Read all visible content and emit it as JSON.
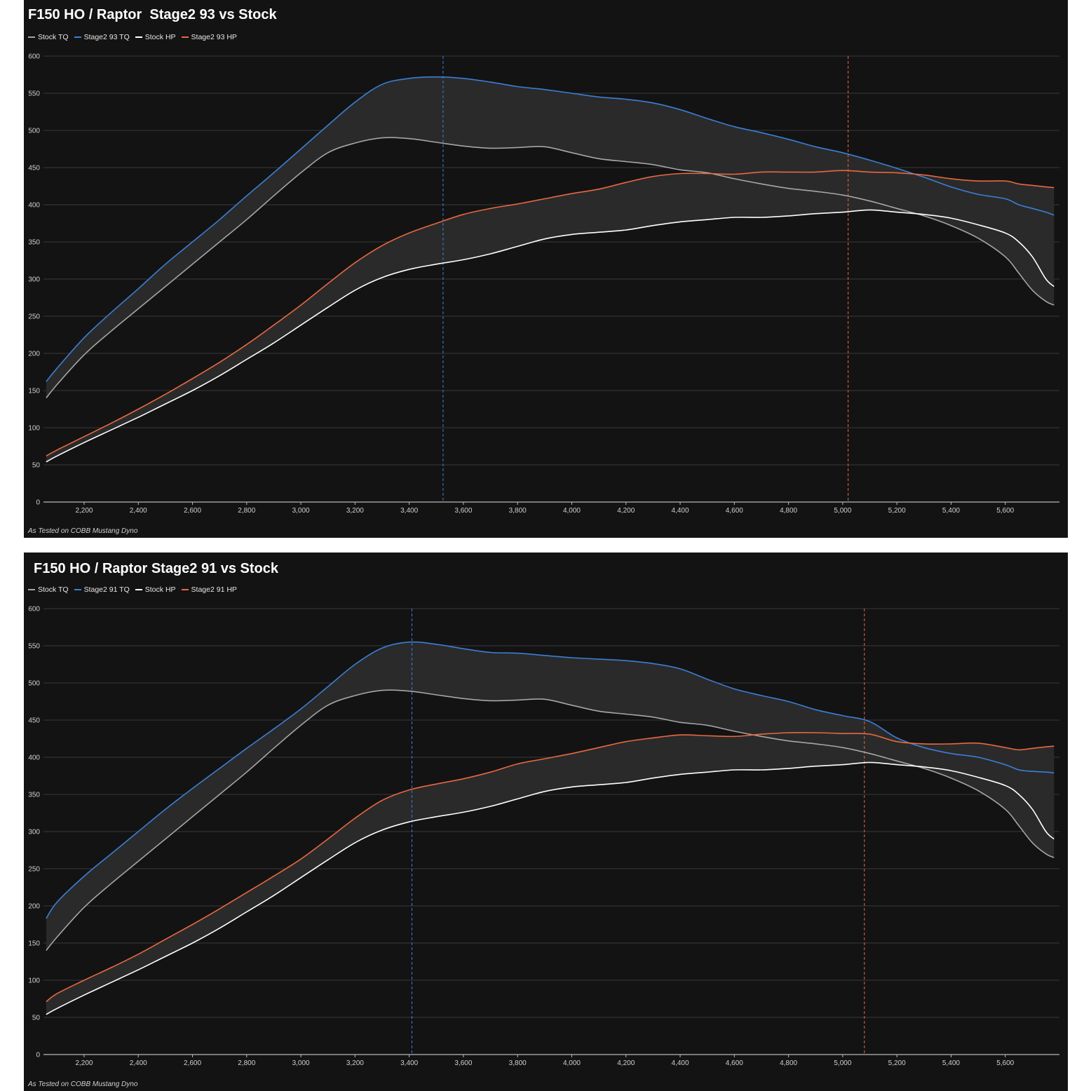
{
  "colors": {
    "background": "#131314",
    "grid": "#3a3a3c",
    "band": "#2a2a2b",
    "axis_text": "#cfcfcf"
  },
  "charts": [
    {
      "title": "F150 HO / Raptor  Stage2 93 vs Stock",
      "footnote": "As Tested on COBB Mustang Dyno"
    },
    {
      "title": "F150 HO / Raptor Stage2 91 vs Stock",
      "footnote": "As Tested on COBB Mustang Dyno"
    }
  ],
  "chart_data": [
    {
      "type": "line",
      "title": "F150 HO / Raptor  Stage2 93 vs Stock",
      "xlabel": "",
      "ylabel": "",
      "xlim": [
        2050,
        5800
      ],
      "ylim": [
        0,
        600
      ],
      "x_ticks": [
        "2,200",
        "2,400",
        "2,600",
        "2,800",
        "3,000",
        "3,200",
        "3,400",
        "3,600",
        "3,800",
        "4,000",
        "4,200",
        "4,400",
        "4,600",
        "4,800",
        "5,000",
        "5,200",
        "5,400",
        "5,600"
      ],
      "x_tick_values": [
        2200,
        2400,
        2600,
        2800,
        3000,
        3200,
        3400,
        3600,
        3800,
        4000,
        4200,
        4400,
        4600,
        4800,
        5000,
        5200,
        5400,
        5600
      ],
      "y_ticks": [
        0,
        50,
        100,
        150,
        200,
        250,
        300,
        350,
        400,
        450,
        500,
        550,
        600
      ],
      "grid": true,
      "legend_position": "top-left",
      "vlines": [
        {
          "x": 3525,
          "color": "#3b7fd4"
        },
        {
          "x": 5020,
          "color": "#e8683f"
        }
      ],
      "bands": [
        [
          "Stock TQ",
          "Stage2 93 TQ"
        ],
        [
          "Stock HP",
          "Stage2 93 HP"
        ]
      ],
      "series": [
        {
          "name": "Stock TQ",
          "color": "#a6a6a6",
          "x": [
            2060,
            2100,
            2200,
            2300,
            2400,
            2500,
            2600,
            2700,
            2800,
            2900,
            3000,
            3100,
            3200,
            3300,
            3400,
            3500,
            3600,
            3700,
            3800,
            3900,
            4000,
            4100,
            4200,
            4300,
            4400,
            4500,
            4600,
            4700,
            4800,
            4900,
            5000,
            5100,
            5200,
            5300,
            5400,
            5500,
            5600,
            5650,
            5700,
            5750,
            5780
          ],
          "y": [
            140,
            158,
            198,
            230,
            260,
            290,
            320,
            350,
            380,
            412,
            443,
            470,
            483,
            490,
            489,
            484,
            479,
            476,
            477,
            478,
            470,
            462,
            458,
            454,
            447,
            443,
            435,
            428,
            422,
            418,
            413,
            405,
            395,
            385,
            372,
            355,
            330,
            308,
            285,
            270,
            265
          ]
        },
        {
          "name": "Stage2 93 TQ",
          "color": "#3b7fd4",
          "x": [
            2060,
            2100,
            2200,
            2300,
            2400,
            2500,
            2600,
            2700,
            2800,
            2900,
            3000,
            3100,
            3200,
            3300,
            3400,
            3500,
            3600,
            3700,
            3800,
            3900,
            4000,
            4100,
            4200,
            4300,
            4400,
            4500,
            4600,
            4700,
            4800,
            4900,
            5000,
            5100,
            5200,
            5300,
            5400,
            5500,
            5600,
            5650,
            5700,
            5750,
            5780
          ],
          "y": [
            162,
            180,
            221,
            255,
            287,
            320,
            350,
            380,
            412,
            443,
            475,
            507,
            538,
            562,
            570,
            572,
            570,
            565,
            559,
            555,
            550,
            545,
            542,
            537,
            528,
            516,
            505,
            497,
            488,
            478,
            470,
            460,
            449,
            437,
            424,
            414,
            408,
            400,
            395,
            390,
            386
          ]
        },
        {
          "name": "Stock HP",
          "color": "#ffffff",
          "x": [
            2060,
            2100,
            2200,
            2300,
            2400,
            2500,
            2600,
            2700,
            2800,
            2900,
            3000,
            3100,
            3200,
            3300,
            3400,
            3500,
            3600,
            3700,
            3800,
            3900,
            4000,
            4100,
            4200,
            4300,
            4400,
            4500,
            4600,
            4700,
            4800,
            4900,
            5000,
            5100,
            5200,
            5300,
            5400,
            5500,
            5600,
            5650,
            5700,
            5750,
            5780
          ],
          "y": [
            54,
            62,
            80,
            97,
            114,
            132,
            150,
            170,
            192,
            214,
            238,
            262,
            285,
            302,
            313,
            320,
            326,
            334,
            344,
            354,
            360,
            363,
            366,
            372,
            377,
            380,
            383,
            383,
            385,
            388,
            390,
            393,
            390,
            387,
            382,
            373,
            362,
            350,
            330,
            300,
            290
          ]
        },
        {
          "name": "Stage2 93 HP",
          "color": "#e8683f",
          "x": [
            2060,
            2100,
            2200,
            2300,
            2400,
            2500,
            2600,
            2700,
            2800,
            2900,
            3000,
            3100,
            3200,
            3300,
            3400,
            3500,
            3600,
            3700,
            3800,
            3900,
            4000,
            4100,
            4200,
            4300,
            4400,
            4500,
            4600,
            4700,
            4800,
            4900,
            5000,
            5100,
            5200,
            5300,
            5400,
            5500,
            5600,
            5650,
            5700,
            5750,
            5780
          ],
          "y": [
            62,
            70,
            88,
            106,
            125,
            145,
            166,
            188,
            212,
            238,
            265,
            294,
            322,
            345,
            362,
            375,
            387,
            395,
            401,
            408,
            415,
            421,
            430,
            438,
            442,
            442,
            441,
            444,
            444,
            444,
            446,
            444,
            443,
            440,
            435,
            432,
            432,
            428,
            426,
            424,
            423
          ]
        }
      ]
    },
    {
      "type": "line",
      "title": "F150 HO / Raptor Stage2 91 vs Stock",
      "xlabel": "",
      "ylabel": "",
      "xlim": [
        2050,
        5800
      ],
      "ylim": [
        0,
        600
      ],
      "x_ticks": [
        "2,200",
        "2,400",
        "2,600",
        "2,800",
        "3,000",
        "3,200",
        "3,400",
        "3,600",
        "3,800",
        "4,000",
        "4,200",
        "4,400",
        "4,600",
        "4,800",
        "5,000",
        "5,200",
        "5,400",
        "5,600"
      ],
      "x_tick_values": [
        2200,
        2400,
        2600,
        2800,
        3000,
        3200,
        3400,
        3600,
        3800,
        4000,
        4200,
        4400,
        4600,
        4800,
        5000,
        5200,
        5400,
        5600
      ],
      "y_ticks": [
        0,
        50,
        100,
        150,
        200,
        250,
        300,
        350,
        400,
        450,
        500,
        550,
        600
      ],
      "grid": true,
      "legend_position": "top-left",
      "vlines": [
        {
          "x": 3410,
          "color": "#3b7fd4"
        },
        {
          "x": 5080,
          "color": "#e8683f"
        }
      ],
      "bands": [
        [
          "Stock TQ",
          "Stage2 91 TQ"
        ],
        [
          "Stock HP",
          "Stage2 91 HP"
        ]
      ],
      "series": [
        {
          "name": "Stock TQ",
          "color": "#a6a6a6",
          "x": [
            2060,
            2100,
            2200,
            2300,
            2400,
            2500,
            2600,
            2700,
            2800,
            2900,
            3000,
            3100,
            3200,
            3300,
            3400,
            3500,
            3600,
            3700,
            3800,
            3900,
            4000,
            4100,
            4200,
            4300,
            4400,
            4500,
            4600,
            4700,
            4800,
            4900,
            5000,
            5100,
            5200,
            5300,
            5400,
            5500,
            5600,
            5650,
            5700,
            5750,
            5780
          ],
          "y": [
            140,
            158,
            198,
            230,
            260,
            290,
            320,
            350,
            380,
            412,
            443,
            470,
            483,
            490,
            489,
            484,
            479,
            476,
            477,
            478,
            470,
            462,
            458,
            454,
            447,
            443,
            435,
            428,
            422,
            418,
            413,
            405,
            395,
            385,
            372,
            355,
            330,
            308,
            285,
            270,
            265
          ]
        },
        {
          "name": "Stage2 91 TQ",
          "color": "#3b7fd4",
          "x": [
            2060,
            2100,
            2200,
            2300,
            2400,
            2500,
            2600,
            2700,
            2800,
            2900,
            3000,
            3100,
            3200,
            3300,
            3400,
            3500,
            3600,
            3700,
            3800,
            3900,
            4000,
            4100,
            4200,
            4300,
            4400,
            4500,
            4600,
            4700,
            4800,
            4900,
            5000,
            5100,
            5200,
            5300,
            5400,
            5500,
            5600,
            5650,
            5700,
            5750,
            5780
          ],
          "y": [
            183,
            205,
            240,
            270,
            300,
            330,
            358,
            385,
            412,
            438,
            465,
            495,
            525,
            547,
            555,
            552,
            546,
            541,
            540,
            537,
            534,
            532,
            530,
            526,
            519,
            505,
            492,
            483,
            475,
            464,
            456,
            448,
            426,
            413,
            405,
            400,
            390,
            383,
            381,
            380,
            379
          ]
        },
        {
          "name": "Stock HP",
          "color": "#ffffff",
          "x": [
            2060,
            2100,
            2200,
            2300,
            2400,
            2500,
            2600,
            2700,
            2800,
            2900,
            3000,
            3100,
            3200,
            3300,
            3400,
            3500,
            3600,
            3700,
            3800,
            3900,
            4000,
            4100,
            4200,
            4300,
            4400,
            4500,
            4600,
            4700,
            4800,
            4900,
            5000,
            5100,
            5200,
            5300,
            5400,
            5500,
            5600,
            5650,
            5700,
            5750,
            5780
          ],
          "y": [
            54,
            62,
            80,
            97,
            114,
            132,
            150,
            170,
            192,
            214,
            238,
            262,
            285,
            302,
            313,
            320,
            326,
            334,
            344,
            354,
            360,
            363,
            366,
            372,
            377,
            380,
            383,
            383,
            385,
            388,
            390,
            393,
            390,
            387,
            382,
            373,
            362,
            350,
            330,
            300,
            290
          ]
        },
        {
          "name": "Stage2 91 HP",
          "color": "#e8683f",
          "x": [
            2060,
            2100,
            2200,
            2300,
            2400,
            2500,
            2600,
            2700,
            2800,
            2900,
            3000,
            3100,
            3200,
            3300,
            3400,
            3500,
            3600,
            3700,
            3800,
            3900,
            4000,
            4100,
            4200,
            4300,
            4400,
            4500,
            4600,
            4700,
            4800,
            4900,
            5000,
            5100,
            5200,
            5300,
            5400,
            5500,
            5600,
            5650,
            5700,
            5750,
            5780
          ],
          "y": [
            71,
            82,
            100,
            117,
            135,
            155,
            175,
            196,
            218,
            240,
            263,
            290,
            318,
            342,
            356,
            364,
            371,
            380,
            391,
            398,
            405,
            413,
            421,
            426,
            430,
            429,
            428,
            431,
            433,
            433,
            432,
            431,
            421,
            418,
            418,
            419,
            413,
            410,
            412,
            414,
            415
          ]
        }
      ]
    }
  ]
}
